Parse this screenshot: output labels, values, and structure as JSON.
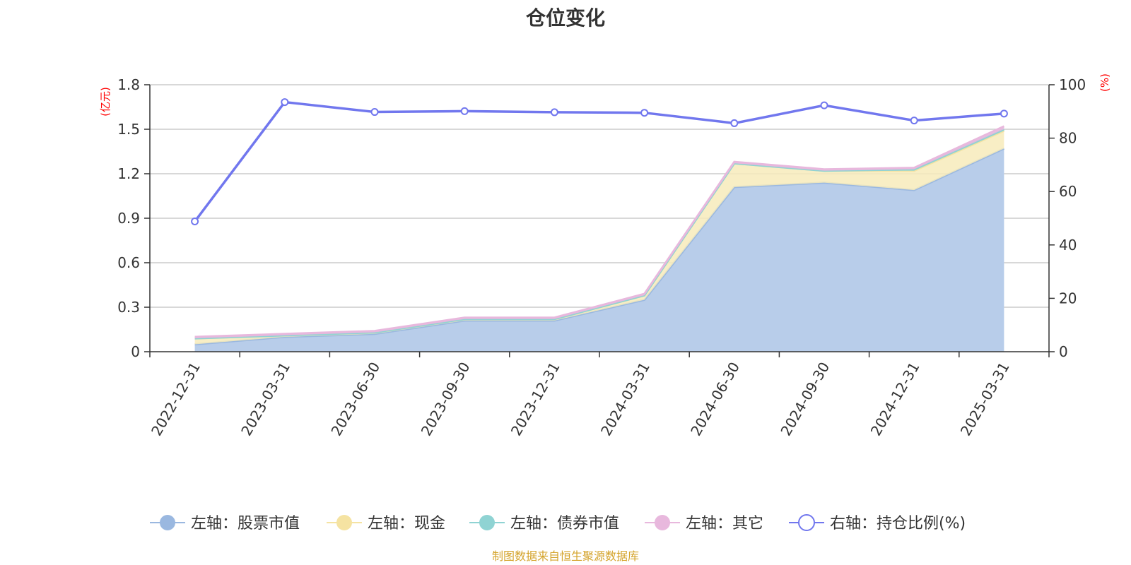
{
  "title": "仓位变化",
  "source_note": "制图数据来自恒生聚源数据库",
  "left_unit": "(亿元)",
  "right_unit": "(%)",
  "colors": {
    "stock": "#9ab8e0",
    "stock_fill": "#b8cdea",
    "cash": "#f5e3a2",
    "cash_fill": "#f7ebbb",
    "bond": "#8fd3d3",
    "other": "#e8b8dd",
    "ratio": "#7177ee",
    "grid": "#cccccc",
    "axis": "#333333",
    "unit_red": "#ff0000"
  },
  "chart_data": {
    "type": "area",
    "categories": [
      "2022-12-31",
      "2023-03-31",
      "2023-06-30",
      "2023-09-30",
      "2023-12-31",
      "2024-03-31",
      "2024-06-30",
      "2024-09-30",
      "2024-12-31",
      "2025-03-31"
    ],
    "left_axis": {
      "min": 0,
      "max": 1.8,
      "ticks": [
        "0",
        "0.3",
        "0.6",
        "0.9",
        "1.2",
        "1.5",
        "1.8"
      ],
      "unit": "(亿元)"
    },
    "right_axis": {
      "min": 0,
      "max": 100,
      "ticks": [
        "0",
        "20",
        "40",
        "60",
        "80",
        "100"
      ],
      "unit": "(%)"
    },
    "series": [
      {
        "name": "左轴：股票市值",
        "axis": "left",
        "stacked": true,
        "values": [
          0.05,
          0.1,
          0.12,
          0.21,
          0.21,
          0.35,
          1.11,
          1.14,
          1.09,
          1.37
        ]
      },
      {
        "name": "左轴：现金",
        "axis": "left",
        "stacked": true,
        "values": [
          0.04,
          0.01,
          0.01,
          0.01,
          0.01,
          0.03,
          0.16,
          0.08,
          0.13,
          0.12
        ]
      },
      {
        "name": "左轴：债券市值",
        "axis": "left",
        "stacked": true,
        "values": [
          0.0,
          0.0,
          0.0,
          0.0,
          0.0,
          0.0,
          0.0,
          0.0,
          0.01,
          0.01
        ]
      },
      {
        "name": "左轴：其它",
        "axis": "left",
        "stacked": true,
        "values": [
          0.01,
          0.01,
          0.01,
          0.01,
          0.01,
          0.01,
          0.01,
          0.01,
          0.01,
          0.02
        ]
      },
      {
        "name": "右轴：持仓比例(%)",
        "axis": "right",
        "type": "line",
        "values": [
          48.8,
          93.5,
          89.8,
          90.1,
          89.7,
          89.5,
          85.6,
          92.3,
          86.6,
          89.2
        ]
      }
    ],
    "grid": true,
    "legend_position": "bottom"
  }
}
